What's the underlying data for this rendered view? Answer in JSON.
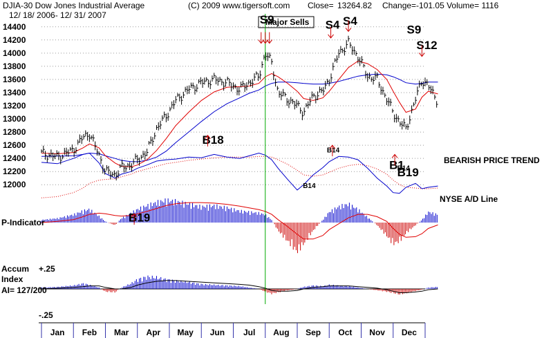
{
  "header": {
    "symbol_title": "DJIA-30  Dow Jones Industrial Average",
    "copyright": "(C) 2009 www.tigersoft.com",
    "close_label": "Close=",
    "close_value": "13264.82",
    "change_text": "Change=-101.05 Volume= 1116",
    "date_range": "12/ 18/ 2006- 12/ 31/ 2007"
  },
  "legend": {
    "major_sells": "Major Sells",
    "bearish_trend": "BEARISH PRICE TREND",
    "ad_line": "NYSE A/D Line",
    "p_indicator": "P-Indicator",
    "accum_line1": "Accum",
    "accum_line2": "Index",
    "accum_ai": "AI= 127/200",
    "accum_top": "+.25",
    "accum_bottom": "-.25"
  },
  "colors": {
    "price_bars": "#000000",
    "ma_red": "#e00000",
    "ma_blue": "#0000cc",
    "ad_line": "#0000cc",
    "ad_ma": "#e00000",
    "positive_hist": "#0000cc",
    "negative_hist": "#cc0000",
    "grid": "#999999",
    "vertical_marker": "#00aa00",
    "arrow": "#cc0000"
  },
  "signals": [
    {
      "label": "S9",
      "date_index": 7.0,
      "y": 14450,
      "size": "big",
      "arrow": "down-triple",
      "arrow_y": 14150
    },
    {
      "label": "S4",
      "date_index": 9.05,
      "y": 14370,
      "size": "big",
      "arrow": "down",
      "arrow_y": 14230
    },
    {
      "label": "S4",
      "date_index": 9.6,
      "y": 14430,
      "size": "big",
      "arrow": "down",
      "arrow_y": 14330
    },
    {
      "label": "S9",
      "date_index": 11.6,
      "y": 14300,
      "size": "big",
      "arrow": "none"
    },
    {
      "label": "S12",
      "date_index": 11.9,
      "y": 14060,
      "size": "big",
      "arrow": "down",
      "arrow_y": 13950
    },
    {
      "label": "B18",
      "date_index": 5.2,
      "y": 12620,
      "size": "big",
      "arrow": "up",
      "arrow_y": 12750
    },
    {
      "label": "B14",
      "date_index": 9.1,
      "y": 12490,
      "size": "small",
      "arrow": "up",
      "arrow_y": 12600
    },
    {
      "label": "B14",
      "date_index": 8.35,
      "y": 11950,
      "size": "small",
      "arrow": "none"
    },
    {
      "label": "B14",
      "date_index": 11.3,
      "y": 12220,
      "size": "small",
      "arrow": "none"
    },
    {
      "label": "B1",
      "date_index": 11.05,
      "y": 12240,
      "size": "big",
      "arrow": "up",
      "arrow_y": 12460
    },
    {
      "label": "B19",
      "date_index": 11.3,
      "y": 12130,
      "size": "big",
      "arrow": "none"
    },
    {
      "label": "B19",
      "date_index": 2.9,
      "y": 11440,
      "size": "big",
      "arrow": "up",
      "arrow_y": 11560
    }
  ],
  "chart_data": {
    "type": "line",
    "title": "DJIA-30  Dow Jones Industrial Average",
    "x_months": [
      "Jan",
      "Feb",
      "Mar",
      "Apr",
      "May",
      "Jun",
      "Jul",
      "Aug",
      "Sep",
      "Oct",
      "Nov",
      "Dec"
    ],
    "y_ticks": [
      12000,
      12200,
      12400,
      12600,
      12800,
      13000,
      13200,
      13400,
      13600,
      13800,
      14000,
      14200,
      14400
    ],
    "ylim": [
      11950,
      14450
    ],
    "grid": "horizontal dotted",
    "price_close_x": [
      0.0,
      0.5,
      1.0,
      1.3,
      1.5,
      1.8,
      2.0,
      2.3,
      2.5,
      2.8,
      3.0,
      3.3,
      3.6,
      3.9,
      4.2,
      4.6,
      5.0,
      5.4,
      5.8,
      6.2,
      6.5,
      6.8,
      7.0,
      7.2,
      7.4,
      7.7,
      8.0,
      8.2,
      8.5,
      8.8,
      9.0,
      9.3,
      9.6,
      9.9,
      10.2,
      10.5,
      10.8,
      11.0,
      11.2,
      11.4,
      11.7,
      11.9,
      12.1,
      12.4
    ],
    "price_close_y": [
      12480,
      12420,
      12530,
      12720,
      12780,
      12450,
      12200,
      12150,
      12260,
      12300,
      12380,
      12500,
      12850,
      13050,
      13280,
      13450,
      13550,
      13600,
      13550,
      13450,
      13550,
      13650,
      14000,
      13850,
      13400,
      13300,
      13200,
      13100,
      13350,
      13420,
      13600,
      14000,
      14150,
      13950,
      13650,
      13600,
      13300,
      13100,
      12950,
      12850,
      13300,
      13600,
      13500,
      13264.82
    ],
    "series": [
      {
        "name": "Close",
        "x": "price_close_x",
        "y": "price_close_y"
      }
    ],
    "ma_red_y": [
      12480,
      12470,
      12490,
      12560,
      12620,
      12560,
      12440,
      12330,
      12280,
      12270,
      12300,
      12380,
      12520,
      12700,
      12900,
      13100,
      13280,
      13410,
      13480,
      13490,
      13500,
      13540,
      13640,
      13690,
      13640,
      13540,
      13420,
      13310,
      13280,
      13320,
      13420,
      13600,
      13780,
      13880,
      13840,
      13750,
      13600,
      13420,
      13250,
      13100,
      13150,
      13330,
      13420,
      13380
    ],
    "ma_blue_y": [
      12430,
      12435,
      12440,
      12460,
      12480,
      12470,
      12440,
      12400,
      12370,
      12350,
      12350,
      12370,
      12420,
      12510,
      12640,
      12800,
      12960,
      13110,
      13230,
      13320,
      13390,
      13440,
      13500,
      13540,
      13560,
      13560,
      13550,
      13540,
      13530,
      13530,
      13540,
      13570,
      13610,
      13650,
      13670,
      13680,
      13670,
      13640,
      13600,
      13550,
      13530,
      13540,
      13560,
      13560
    ],
    "ad_line_y": [
      12340,
      12320,
      12400,
      12460,
      12480,
      12330,
      12170,
      12100,
      12160,
      12200,
      12250,
      12300,
      12360,
      12380,
      12390,
      12420,
      12410,
      12460,
      12420,
      12400,
      12440,
      12480,
      12450,
      12380,
      12250,
      12080,
      11920,
      12000,
      12150,
      12260,
      12350,
      12430,
      12420,
      12380,
      12250,
      12100,
      11980,
      11880,
      11870,
      11960,
      12020,
      11940,
      11960,
      11980
    ],
    "ad_ma_y": [
      11800,
      11820,
      11880,
      11950,
      12020,
      12070,
      12080,
      12090,
      12120,
      12160,
      12200,
      12240,
      12280,
      12320,
      12340,
      12370,
      12390,
      12410,
      12420,
      12420,
      12420,
      12430,
      12430,
      12420,
      12380,
      12310,
      12220,
      12150,
      12130,
      12150,
      12190,
      12250,
      12290,
      12310,
      12290,
      12240,
      12160,
      12070,
      12000,
      11960,
      11950,
      11940,
      11940,
      11950
    ],
    "p_indicator_y": [
      0.05,
      0.08,
      0.15,
      0.22,
      0.25,
      0.12,
      0.02,
      -0.05,
      0.08,
      0.18,
      0.25,
      0.32,
      0.38,
      0.42,
      0.4,
      0.35,
      0.3,
      0.32,
      0.28,
      0.22,
      0.2,
      0.18,
      0.15,
      0.05,
      -0.15,
      -0.35,
      -0.55,
      -0.4,
      -0.15,
      0.05,
      0.2,
      0.3,
      0.35,
      0.25,
      0.1,
      -0.05,
      -0.25,
      -0.4,
      -0.35,
      -0.2,
      -0.05,
      0.05,
      0.2,
      0.15
    ],
    "p_indicator_ma_y": [
      0.0,
      0.02,
      0.05,
      0.1,
      0.14,
      0.16,
      0.15,
      0.12,
      0.11,
      0.12,
      0.15,
      0.19,
      0.24,
      0.29,
      0.32,
      0.34,
      0.34,
      0.33,
      0.31,
      0.28,
      0.25,
      0.22,
      0.19,
      0.14,
      0.05,
      -0.07,
      -0.2,
      -0.28,
      -0.28,
      -0.22,
      -0.12,
      -0.02,
      0.08,
      0.14,
      0.14,
      0.1,
      0.02,
      -0.1,
      -0.2,
      -0.25,
      -0.24,
      -0.19,
      -0.1,
      -0.04
    ],
    "accum_index_y": [
      0.02,
      0.03,
      0.05,
      0.08,
      0.06,
      0.02,
      -0.04,
      -0.05,
      0.02,
      0.08,
      0.14,
      0.18,
      0.17,
      0.14,
      0.12,
      0.1,
      0.07,
      0.06,
      0.05,
      0.04,
      0.02,
      0.0,
      -0.04,
      -0.07,
      -0.05,
      -0.02,
      0.0,
      0.03,
      0.05,
      0.04,
      0.06,
      0.05,
      0.04,
      0.02,
      0.0,
      -0.02,
      -0.04,
      -0.06,
      -0.08,
      -0.06,
      -0.03,
      -0.01,
      0.02,
      0.03
    ],
    "accum_ma_y": [
      0.0,
      0.01,
      0.02,
      0.03,
      0.04,
      0.04,
      0.02,
      0.0,
      0.0,
      0.02,
      0.05,
      0.08,
      0.1,
      0.11,
      0.11,
      0.1,
      0.09,
      0.08,
      0.07,
      0.06,
      0.05,
      0.03,
      0.01,
      -0.02,
      -0.03,
      -0.03,
      -0.02,
      0.0,
      0.02,
      0.03,
      0.04,
      0.04,
      0.04,
      0.03,
      0.02,
      0.01,
      -0.01,
      -0.03,
      -0.05,
      -0.05,
      -0.04,
      -0.03,
      -0.01,
      0.0
    ],
    "vertical_marker_at": 7.0
  }
}
